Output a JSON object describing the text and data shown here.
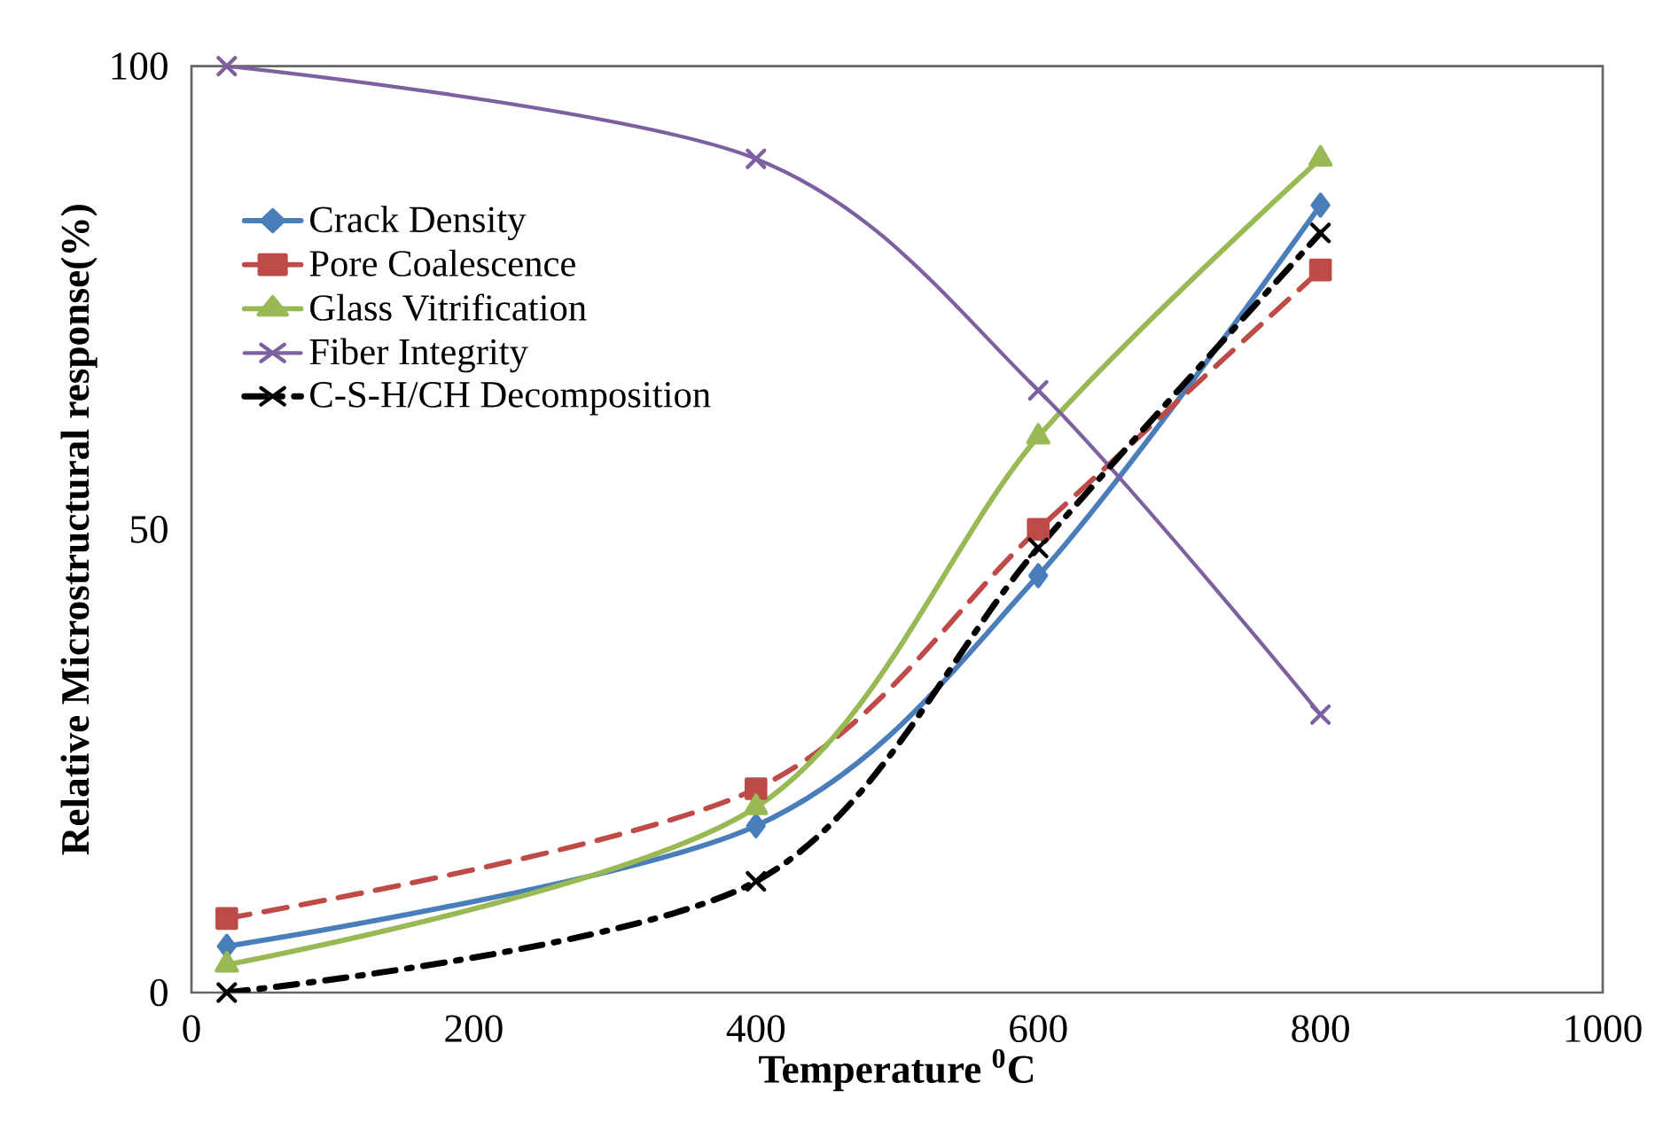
{
  "chart_data": {
    "type": "line",
    "xlabel": "Temperature $^{0}$C",
    "ylabel": "Relative Microstructural response(%)",
    "x": [
      25,
      400,
      600,
      800
    ],
    "series": [
      {
        "name": "Crack Density",
        "color": "#4a7ebb",
        "values": [
          5,
          18,
          45,
          85
        ],
        "marker": "diamond",
        "line_style": "solid"
      },
      {
        "name": "Pore Coalescence",
        "color": "#be4b48",
        "values": [
          8,
          22,
          50,
          78
        ],
        "marker": "square",
        "line_style": "dashed"
      },
      {
        "name": "Glass Vitrification",
        "color": "#98b954",
        "values": [
          3,
          20,
          60,
          90
        ],
        "marker": "triangle",
        "line_style": "solid"
      },
      {
        "name": "Fiber Integrity",
        "color": "#7d60a0",
        "values": [
          100,
          90,
          65,
          30
        ],
        "marker": "cross",
        "line_style": "solid"
      },
      {
        "name": "C-S-H/CH Decomposition",
        "color": "#000000",
        "values": [
          0,
          12,
          48,
          82
        ],
        "marker": "cross",
        "line_style": "dashdot"
      }
    ],
    "xlim": [
      0,
      1000
    ],
    "xticks": [
      0,
      200,
      400,
      600,
      800,
      1000
    ],
    "ylim": [
      0,
      100
    ],
    "yticks": [
      0,
      50,
      100
    ],
    "grid": false,
    "legend": "top left"
  }
}
